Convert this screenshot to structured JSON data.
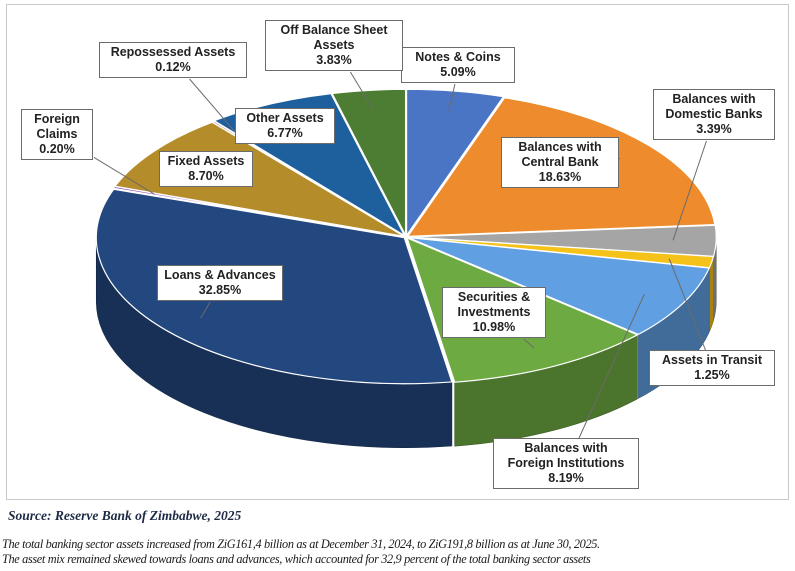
{
  "chart_data": {
    "type": "pie",
    "style": "3d-exploded",
    "unit": "percent",
    "slices": [
      {
        "key": "notes",
        "label": "Notes & Coins",
        "value": 5.09,
        "pct": "5.09%",
        "color": "#4a74c4"
      },
      {
        "key": "central",
        "label": "Balances with Central Bank",
        "value": 18.63,
        "pct": "18.63%",
        "color": "#ee8b2c"
      },
      {
        "key": "domestic",
        "label": "Balances with Domestic Banks",
        "value": 3.39,
        "pct": "3.39%",
        "color": "#a5a5a5"
      },
      {
        "key": "transit",
        "label": "Assets in Transit",
        "value": 1.25,
        "pct": "1.25%",
        "color": "#f5c21a"
      },
      {
        "key": "foreign_inst",
        "label": "Balances with Foreign Institutions",
        "value": 8.19,
        "pct": "8.19%",
        "color": "#5f9fe2"
      },
      {
        "key": "securities",
        "label": "Securities & Investments",
        "value": 10.98,
        "pct": "10.98%",
        "color": "#6eaa42"
      },
      {
        "key": "loans",
        "label": "Loans & Advances",
        "value": 32.85,
        "pct": "32.85%",
        "color": "#23477f"
      },
      {
        "key": "foreign_claims",
        "label": "Foreign Claims",
        "value": 0.2,
        "pct": "0.20%",
        "color": "#8c3bb5"
      },
      {
        "key": "fixed",
        "label": "Fixed Assets",
        "value": 8.7,
        "pct": "8.70%",
        "color": "#b58c2a"
      },
      {
        "key": "repossessed",
        "label": "Repossessed Assets",
        "value": 0.12,
        "pct": "0.12%",
        "color": "#9c2b2b"
      },
      {
        "key": "other",
        "label": "Other Assets",
        "value": 6.77,
        "pct": "6.77%",
        "color": "#1e5f9e"
      },
      {
        "key": "obs",
        "label": "Off Balance Sheet Assets",
        "value": 3.83,
        "pct": "3.83%",
        "color": "#4c7d32"
      }
    ]
  },
  "callouts": {
    "notes": {
      "line1": "Notes & Coins",
      "pct": "5.09%"
    },
    "central": {
      "line1": "Balances with",
      "line2": "Central Bank",
      "pct": "18.63%"
    },
    "domestic": {
      "line1": "Balances with",
      "line2": "Domestic Banks",
      "pct": "3.39%"
    },
    "transit": {
      "line1": "Assets in Transit",
      "pct": "1.25%"
    },
    "foreign_inst": {
      "line1": "Balances with",
      "line2": "Foreign Institutions",
      "pct": "8.19%"
    },
    "securities": {
      "line1": "Securities &",
      "line2": "Investments",
      "pct": "10.98%"
    },
    "loans": {
      "line1": "Loans & Advances",
      "pct": "32.85%"
    },
    "foreign_claims": {
      "line1": "Foreign",
      "line2": "Claims",
      "pct": "0.20%"
    },
    "fixed": {
      "line1": "Fixed Assets",
      "pct": "8.70%"
    },
    "repossessed": {
      "line1": "Repossessed Assets",
      "pct": "0.12%"
    },
    "other": {
      "line1": "Other Assets",
      "pct": "6.77%"
    },
    "obs": {
      "line1": "Off Balance Sheet",
      "line2": "Assets",
      "pct": "3.83%"
    }
  },
  "source": "Source: Reserve Bank of Zimbabwe, 2025",
  "body_text": {
    "line1": "The total banking sector assets increased from ZiG161,4 billion as at December 31, 2024, to ZiG191,8 billion as at June 30, 2025.",
    "line2": "The asset mix remained skewed towards loans and advances, which accounted for 32,9 percent of the total banking sector assets"
  }
}
